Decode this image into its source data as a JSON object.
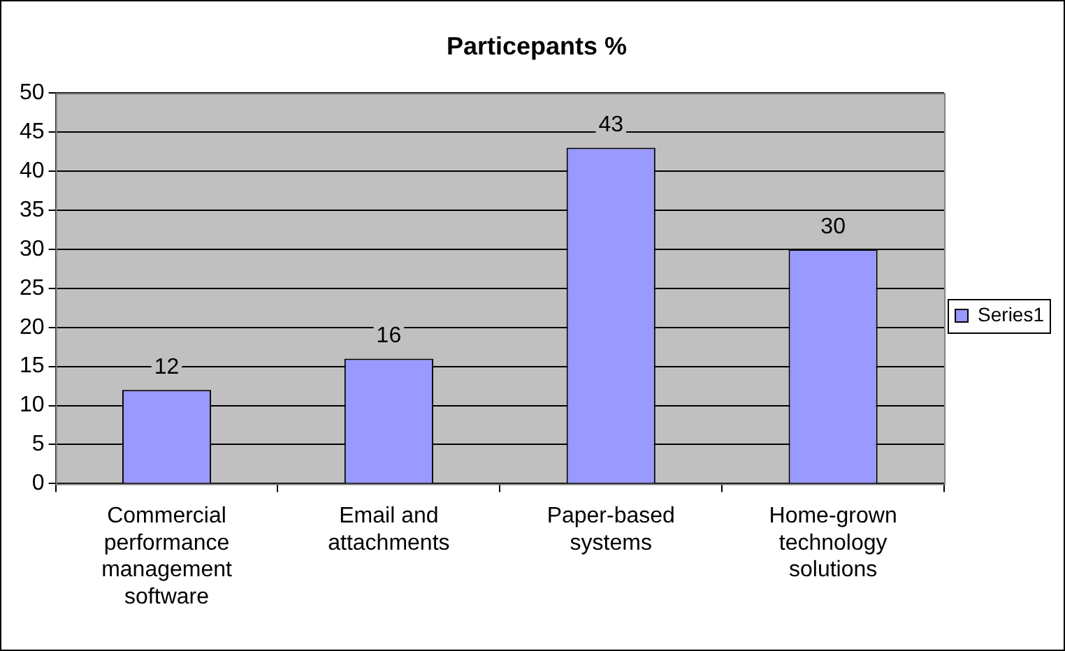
{
  "chart_data": {
    "type": "bar",
    "title": "Particepants %",
    "categories": [
      "Commercial performance management software",
      "Email and attachments",
      "Paper-based systems",
      "Home-grown technology solutions"
    ],
    "series": [
      {
        "name": "Series1",
        "color": "#9999ff",
        "values": [
          12,
          16,
          43,
          30
        ]
      }
    ],
    "ylim": [
      0,
      50
    ],
    "yticks": [
      0,
      5,
      10,
      15,
      20,
      25,
      30,
      35,
      40,
      45,
      50
    ],
    "grid": "y",
    "legend": "right",
    "data_labels": true
  }
}
